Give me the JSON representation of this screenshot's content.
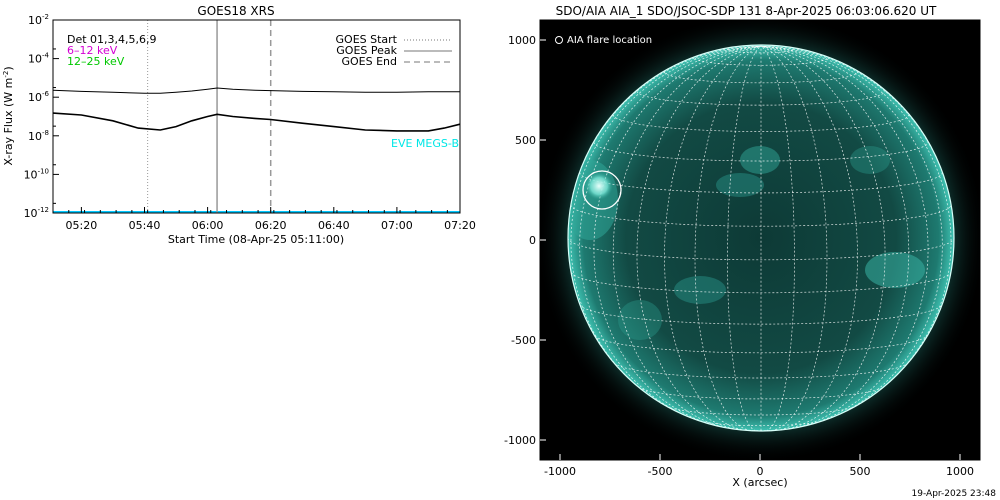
{
  "colors": {
    "background": "#ffffff",
    "axis": "#000000",
    "flux_long": "#000000",
    "flux_short": "#000000",
    "channel_6_12": "#d400d4",
    "channel_12_25": "#00c800",
    "eve_label": "#00e6e6",
    "baseline": "#00c8ff",
    "event_line": "#999999",
    "solar_disk": "#1e8c80",
    "flare_marker": "#ffffff"
  },
  "timestamp": "19-Apr-2025 23:48",
  "chart_data": [
    {
      "type": "line",
      "title": "GOES18 XRS",
      "xlabel": "Start Time (08-Apr-25 05:11:00)",
      "ylabel": "X-ray Flux (W m",
      "ylabel_sup": "-2",
      "ylabel_end": ")",
      "ylog": true,
      "xlim": [
        "05:11",
        "07:20"
      ],
      "ylim_exp": [
        -12,
        -2
      ],
      "x_ticks": [
        "05:20",
        "05:40",
        "06:00",
        "06:20",
        "06:40",
        "07:00",
        "07:20"
      ],
      "y_ticks": [
        {
          "base": "10",
          "exp": "-12"
        },
        {
          "base": "10",
          "exp": "-10"
        },
        {
          "base": "10",
          "exp": "-8"
        },
        {
          "base": "10",
          "exp": "-6"
        },
        {
          "base": "10",
          "exp": "-4"
        },
        {
          "base": "10",
          "exp": "-2"
        }
      ],
      "legend_left": {
        "detectors": "Det 01,3,4,5,6,9",
        "ch1": "6–12 keV",
        "ch2": "12–25 keV"
      },
      "legend_right": [
        {
          "label": "GOES Start",
          "style": "dotted"
        },
        {
          "label": "GOES Peak",
          "style": "solid"
        },
        {
          "label": "GOES End",
          "style": "dashed"
        }
      ],
      "eve_label": "EVE MEGS-B",
      "events": {
        "start": "05:41",
        "peak": "06:03",
        "end": "06:20"
      },
      "series": [
        {
          "name": "GOES long",
          "x": [
            "05:11",
            "05:20",
            "05:30",
            "05:40",
            "05:45",
            "05:50",
            "05:55",
            "06:00",
            "06:03",
            "06:08",
            "06:15",
            "06:20",
            "06:30",
            "06:40",
            "06:50",
            "07:00",
            "07:10",
            "07:20"
          ],
          "y": [
            2.3e-06,
            2e-06,
            1.8e-06,
            1.6e-06,
            1.6e-06,
            1.8e-06,
            2.1e-06,
            2.6e-06,
            3e-06,
            2.6e-06,
            2.3e-06,
            2.2e-06,
            2e-06,
            1.9e-06,
            1.8e-06,
            1.8e-06,
            1.9e-06,
            1.9e-06
          ]
        },
        {
          "name": "GOES short",
          "x": [
            "05:11",
            "05:20",
            "05:30",
            "05:38",
            "05:45",
            "05:50",
            "05:55",
            "06:00",
            "06:03",
            "06:08",
            "06:15",
            "06:20",
            "06:30",
            "06:40",
            "06:50",
            "07:00",
            "07:10",
            "07:15",
            "07:20"
          ],
          "y": [
            1.5e-07,
            1.2e-07,
            6e-08,
            2.5e-08,
            2e-08,
            3e-08,
            6e-08,
            1e-07,
            1.3e-07,
            1e-07,
            8e-08,
            7e-08,
            4.5e-08,
            3e-08,
            2e-08,
            1.8e-08,
            1.8e-08,
            2.5e-08,
            4e-08
          ]
        }
      ]
    },
    {
      "type": "image",
      "title": "SDO/AIA AIA_1 SDO/JSOC-SDP 131  8-Apr-2025 06:03:06.620 UT",
      "xlabel": "X (arcsec)",
      "ylabel": "",
      "xlim": [
        -1100,
        1100
      ],
      "ylim": [
        -1100,
        1100
      ],
      "x_ticks": [
        "-1000",
        "-500",
        "0",
        "500",
        "1000"
      ],
      "y_ticks": [
        "-1000",
        "-500",
        "0",
        "500",
        "1000"
      ],
      "legend": "AIA flare location",
      "flare_location": {
        "x": -790,
        "y": 250
      }
    }
  ]
}
